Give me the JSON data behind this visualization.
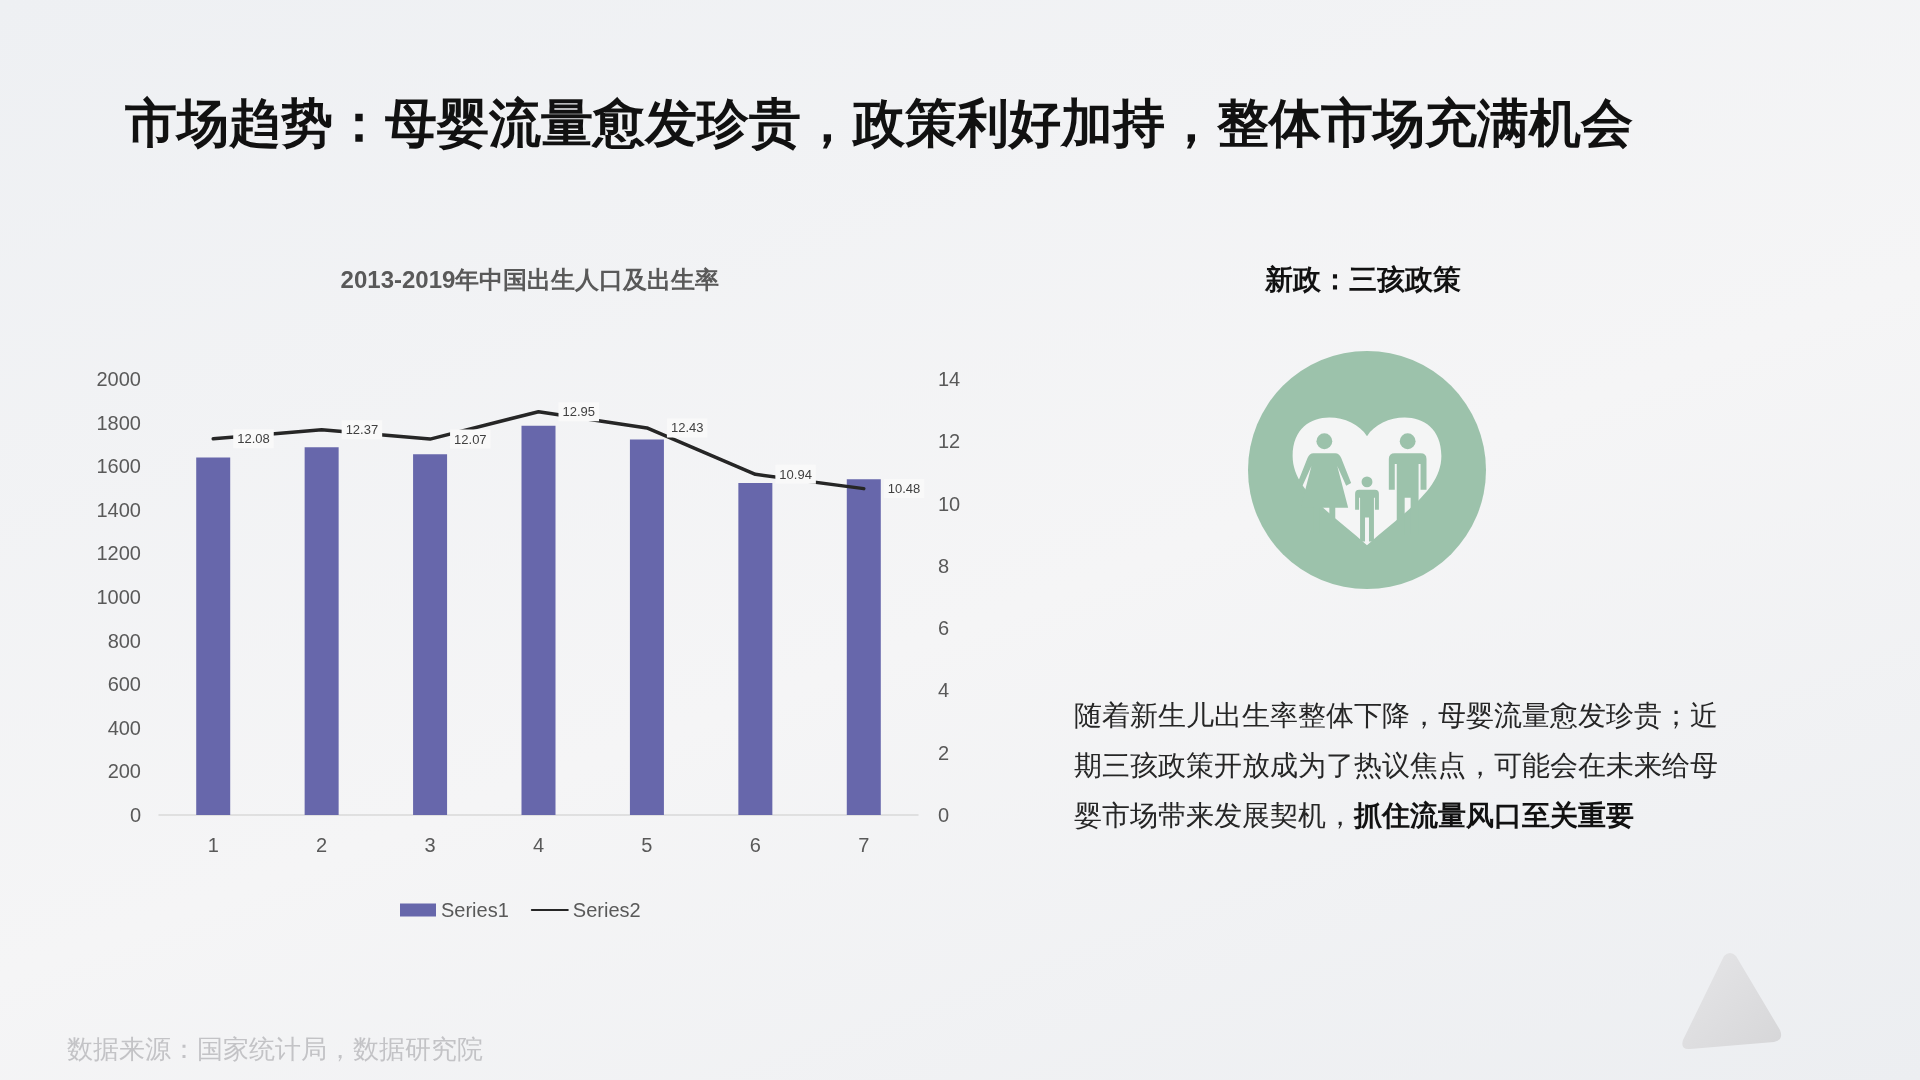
{
  "chart_data": [
    {
      "type": "bar",
      "title": "市场趋势：母婴流量愈发珍贵，政策利好加持，整体市场充满机会",
      "subtitle": "2013-2019年中国出生人口及出生率",
      "categories": [
        "1",
        "2",
        "3",
        "4",
        "5",
        "6",
        "7"
      ],
      "series": [
        {
          "name": "Series1",
          "type": "bar",
          "color": "#6767ab",
          "values": [
            1640,
            1687,
            1655,
            1786,
            1723,
            1523,
            1540
          ]
        },
        {
          "name": "Series2",
          "type": "line",
          "axis": "y2",
          "color": "#262626",
          "values": [
            12.08,
            12.37,
            12.07,
            12.95,
            12.43,
            10.94,
            10.48
          ],
          "value_labels": [
            "12.08",
            "12.37",
            "12.07",
            "12.95",
            "12.43",
            "10.94",
            "10.48"
          ]
        }
      ],
      "ylim": [
        0,
        2000
      ],
      "yticks": [
        0,
        200,
        400,
        600,
        800,
        1000,
        1200,
        1400,
        1600,
        1800,
        2000
      ],
      "y2lim": [
        0,
        14
      ],
      "y2ticks": [
        0,
        2,
        4,
        6,
        8,
        10,
        12,
        14
      ],
      "grid": false,
      "legend": "bottom",
      "marker": "none",
      "line_style": "solid",
      "annotations": [
        "数据来源：国家统计局，数据研究院"
      ]
    },
    {
      "type": "other",
      "title": "新政：三孩政策",
      "annotations": [
        "随着新生儿出生率整体下降，母婴流量愈发珍贵；近期三孩政策开放成为了热议焦点，可能会在未来给母婴市场带来发展契机，",
        "抓住流量风口至关重要"
      ]
    }
  ]
}
